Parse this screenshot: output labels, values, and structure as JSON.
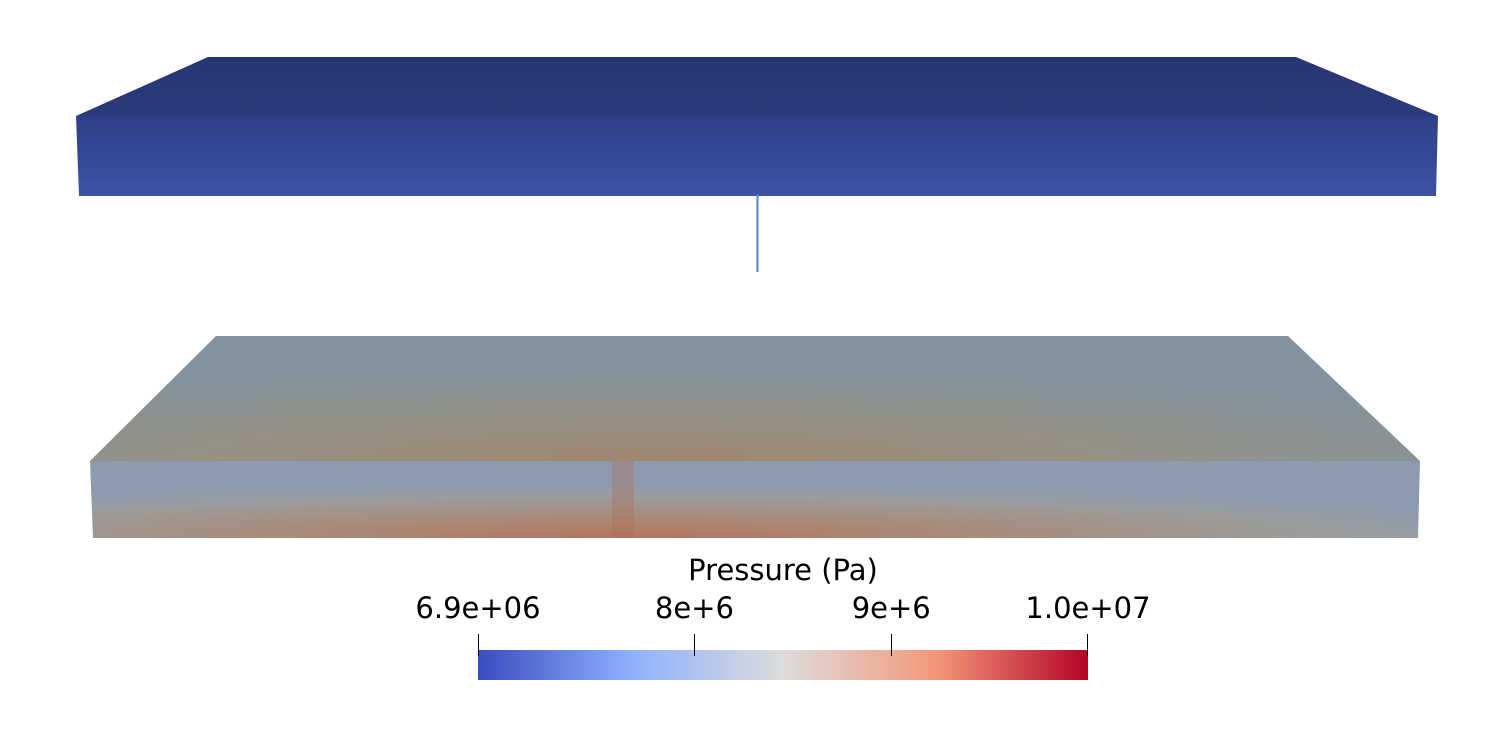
{
  "colorbar": {
    "title": "Pressure (Pa)",
    "min_label": "6.9e+06",
    "max_label": "1.0e+07",
    "range": [
      6900000,
      10000000
    ],
    "ticks": [
      {
        "value": 8000000,
        "label": "8e+6"
      },
      {
        "value": 9000000,
        "label": "9e+6"
      }
    ],
    "colormap": [
      "#3b4cc0",
      "#8db0fe",
      "#dddcdc",
      "#f4987a",
      "#b40426"
    ]
  },
  "layers": {
    "upper_layer": {
      "pressure_pa": 6900000,
      "colors": {
        "top": "#2a3674",
        "side_top": "#2e3d86",
        "side_bottom": "#3b51a3"
      }
    },
    "lower_layer": {
      "pressure_pa_min": 8200000,
      "pressure_pa_max": 9200000,
      "colors": {
        "edge": "#8393a3",
        "center": "#b37a63"
      }
    },
    "connector": {
      "color": "#5a7fd0"
    }
  }
}
